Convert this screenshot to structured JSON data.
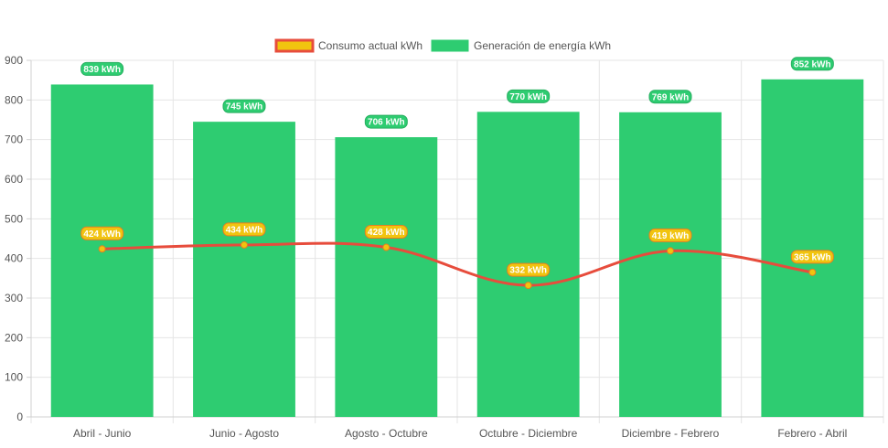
{
  "chart_data": {
    "type": "bar",
    "categories": [
      "Abril - Junio",
      "Junio - Agosto",
      "Agosto - Octubre",
      "Octubre - Diciembre",
      "Diciembre - Febrero",
      "Febrero - Abril"
    ],
    "series": [
      {
        "name": "Generación de energía kWh",
        "type": "bar",
        "color": "#2ecc71",
        "values": [
          839,
          745,
          706,
          770,
          769,
          852
        ],
        "labels": [
          "839 kWh",
          "745 kWh",
          "706 kWh",
          "770 kWh",
          "769 kWh",
          "852 kWh"
        ]
      },
      {
        "name": "Consumo actual kWh",
        "type": "line",
        "color": "#e74c3c",
        "point_color": "#f1c40f",
        "values": [
          424,
          434,
          428,
          332,
          419,
          365
        ],
        "labels": [
          "424 kWh",
          "434 kWh",
          "428 kWh",
          "332 kWh",
          "419 kWh",
          "365 kWh"
        ]
      }
    ],
    "y_ticks": [
      "0",
      "100",
      "200",
      "300",
      "400",
      "500",
      "600",
      "700",
      "800",
      "900"
    ],
    "ylim": [
      0,
      900
    ],
    "grid": true,
    "legend": "top-center",
    "legend_items": [
      {
        "label": "Consumo actual kWh",
        "fill": "#f1c40f",
        "stroke": "#e74c3c"
      },
      {
        "label": "Generación de energía kWh",
        "fill": "#2ecc71",
        "stroke": "#2ecc71"
      }
    ]
  }
}
